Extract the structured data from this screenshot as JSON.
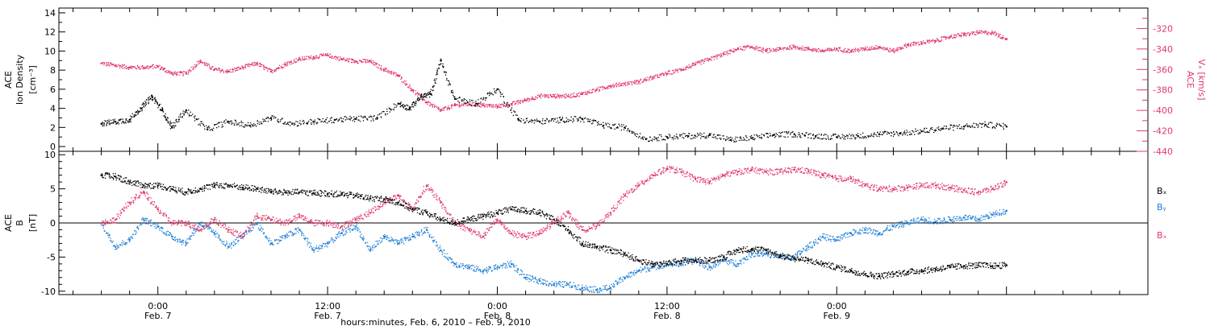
{
  "chart_data": [
    {
      "type": "scatter",
      "panel": "top",
      "y_label_lines": [
        "ACE",
        "Ion Density",
        "[cm⁻³]"
      ],
      "y2_label_lines": [
        "ACE",
        "Vₓ [km/s]"
      ],
      "ylim": [
        -0.5,
        14.5
      ],
      "yticks": [
        0,
        2,
        4,
        6,
        8,
        10,
        12,
        14
      ],
      "y2lim": [
        -440,
        -300
      ],
      "y2ticks": [
        -440,
        -420,
        -400,
        -380,
        -360,
        -340,
        -320
      ],
      "series": [
        {
          "axis": "left",
          "color": "#000000",
          "x": [
            -4.0,
            -3.0,
            -2.0,
            -1.2,
            -0.4,
            0.3,
            1.0,
            2.0,
            3.5,
            5.0,
            6.5,
            8.0,
            9.5,
            11.0,
            12.5,
            14.0,
            15.5,
            17.0,
            17.8,
            18.6,
            19.3,
            20.0,
            21.0,
            22.5,
            24.0,
            25.5,
            27.0,
            28.5,
            30.0,
            31.5,
            33.0,
            34.5,
            36.0,
            37.5,
            39.0,
            40.5,
            42.0,
            43.5,
            45.0,
            46.5,
            48.0,
            49.5,
            51.0,
            52.5,
            54.0,
            55.5,
            57.0,
            58.5,
            60.0
          ],
          "y": [
            2.4,
            2.6,
            2.8,
            4.0,
            5.2,
            3.8,
            2.0,
            3.8,
            1.8,
            2.6,
            2.2,
            3.0,
            2.4,
            2.6,
            2.8,
            2.9,
            3.0,
            4.5,
            4.0,
            5.2,
            5.5,
            9.0,
            5.0,
            4.5,
            6.0,
            2.8,
            2.6,
            2.8,
            2.9,
            2.2,
            2.0,
            0.8,
            1.0,
            1.1,
            1.2,
            0.7,
            0.9,
            1.2,
            1.3,
            1.1,
            1.0,
            1.1,
            1.3,
            1.4,
            1.6,
            1.9,
            2.1,
            2.3,
            2.1
          ]
        },
        {
          "axis": "right",
          "color": "#e0386a",
          "x": [
            -4.0,
            -3.0,
            -2.0,
            -1.0,
            0.0,
            1.0,
            2.0,
            3.0,
            4.0,
            5.0,
            6.0,
            7.0,
            8.0,
            9.0,
            10.0,
            11.0,
            12.0,
            13.0,
            14.0,
            15.0,
            16.0,
            17.0,
            18.0,
            19.0,
            20.0,
            21.0,
            22.0,
            23.0,
            24.0,
            25.0,
            26.0,
            27.0,
            28.0,
            29.0,
            30.0,
            31.0,
            32.0,
            33.0,
            34.0,
            35.0,
            36.0,
            37.0,
            38.0,
            39.0,
            40.0,
            41.0,
            42.0,
            43.0,
            44.0,
            45.0,
            46.0,
            47.0,
            48.0,
            49.0,
            50.0,
            51.0,
            52.0,
            53.0,
            54.0,
            55.0,
            56.0,
            57.0,
            58.0,
            59.0,
            60.0
          ],
          "y": [
            -354,
            -356,
            -358,
            -358,
            -357,
            -364,
            -364,
            -352,
            -360,
            -362,
            -358,
            -354,
            -362,
            -355,
            -350,
            -348,
            -346,
            -350,
            -352,
            -352,
            -360,
            -366,
            -380,
            -392,
            -400,
            -395,
            -394,
            -395,
            -396,
            -394,
            -390,
            -386,
            -386,
            -386,
            -384,
            -380,
            -376,
            -374,
            -372,
            -368,
            -364,
            -360,
            -355,
            -350,
            -345,
            -340,
            -338,
            -342,
            -340,
            -338,
            -340,
            -342,
            -340,
            -342,
            -340,
            -338,
            -342,
            -336,
            -334,
            -332,
            -328,
            -326,
            -324,
            -324,
            -330
          ]
        }
      ]
    },
    {
      "type": "scatter",
      "panel": "bottom",
      "y_label_lines": [
        "ACE",
        "B",
        "[nT]"
      ],
      "ylim": [
        -10.5,
        10.5
      ],
      "yticks": [
        -10,
        -5,
        0,
        5,
        10
      ],
      "zero_line": true,
      "series": [
        {
          "name": "Bₓ",
          "color": "#000000",
          "x": [
            -4.0,
            -3.0,
            -2.0,
            -1.0,
            0.0,
            1.0,
            2.0,
            3.0,
            4.0,
            5.0,
            6.0,
            7.0,
            8.0,
            9.0,
            10.0,
            11.0,
            12.0,
            13.0,
            14.0,
            15.0,
            16.0,
            17.0,
            18.0,
            19.0,
            20.0,
            21.0,
            22.0,
            23.0,
            24.0,
            25.0,
            26.0,
            27.0,
            28.0,
            29.0,
            30.0,
            31.0,
            32.0,
            33.0,
            34.0,
            35.0,
            36.0,
            37.0,
            38.0,
            39.0,
            40.0,
            41.0,
            42.0,
            43.0,
            44.0,
            45.0,
            46.0,
            47.0,
            48.0,
            49.0,
            50.0,
            51.0,
            52.0,
            53.0,
            54.0,
            55.0,
            56.0,
            57.0,
            58.0,
            59.0,
            60.0
          ],
          "y": [
            7.0,
            6.8,
            6.0,
            5.5,
            5.5,
            5.0,
            4.5,
            5.0,
            5.5,
            5.5,
            5.2,
            5.0,
            4.6,
            4.5,
            4.5,
            4.4,
            4.3,
            4.2,
            4.0,
            3.6,
            3.5,
            3.0,
            2.0,
            1.5,
            0.5,
            0.0,
            0.5,
            1.0,
            1.5,
            2.0,
            1.8,
            1.5,
            0.5,
            -1.0,
            -3.0,
            -3.5,
            -4.0,
            -4.5,
            -5.5,
            -6.0,
            -6.0,
            -5.5,
            -5.5,
            -5.5,
            -5.0,
            -4.0,
            -3.8,
            -4.0,
            -4.8,
            -5.2,
            -5.5,
            -6.0,
            -6.5,
            -7.0,
            -7.5,
            -7.8,
            -7.5,
            -7.2,
            -7.0,
            -6.8,
            -6.5,
            -6.3,
            -6.2,
            -6.3,
            -6.2
          ]
        },
        {
          "name": "Bᵧ",
          "color": "#1f7fd4",
          "x": [
            -4.0,
            -3.0,
            -2.0,
            -1.0,
            0.0,
            1.0,
            2.0,
            3.0,
            4.0,
            5.0,
            6.0,
            7.0,
            8.0,
            9.0,
            10.0,
            11.0,
            12.0,
            13.0,
            14.0,
            15.0,
            16.0,
            17.0,
            18.0,
            19.0,
            20.0,
            21.0,
            22.0,
            23.0,
            24.0,
            25.0,
            26.0,
            27.0,
            28.0,
            29.0,
            30.0,
            31.0,
            32.0,
            33.0,
            34.0,
            35.0,
            36.0,
            37.0,
            38.0,
            39.0,
            40.0,
            41.0,
            42.0,
            43.0,
            44.0,
            45.0,
            46.0,
            47.0,
            48.0,
            49.0,
            50.0,
            51.0,
            52.0,
            53.0,
            54.0,
            55.0,
            56.0,
            57.0,
            58.0,
            59.0,
            60.0
          ],
          "y": [
            0.0,
            -3.5,
            -2.5,
            0.5,
            -0.5,
            -2.0,
            -3.0,
            0.0,
            -1.5,
            -3.5,
            -2.0,
            0.0,
            -3.0,
            -2.0,
            -1.0,
            -4.0,
            -3.0,
            -1.5,
            -0.5,
            -4.0,
            -2.0,
            -3.0,
            -2.0,
            -1.0,
            -4.0,
            -6.0,
            -6.5,
            -7.0,
            -6.5,
            -6.0,
            -8.0,
            -8.5,
            -9.0,
            -9.0,
            -9.5,
            -9.8,
            -9.5,
            -8.0,
            -7.0,
            -6.5,
            -6.0,
            -6.0,
            -5.5,
            -6.5,
            -5.5,
            -6.0,
            -4.5,
            -4.5,
            -5.0,
            -5.0,
            -3.5,
            -2.0,
            -2.5,
            -1.5,
            -1.0,
            -1.5,
            -0.5,
            0.0,
            0.5,
            0.2,
            0.5,
            0.8,
            0.5,
            1.2,
            1.8
          ]
        },
        {
          "name": "Bₓ ",
          "color": "#e0386a",
          "x": [
            -4.0,
            -3.0,
            -2.0,
            -1.0,
            0.0,
            1.0,
            2.0,
            3.0,
            4.0,
            5.0,
            6.0,
            7.0,
            8.0,
            9.0,
            10.0,
            11.0,
            12.0,
            13.0,
            14.0,
            15.0,
            16.0,
            17.0,
            18.0,
            19.0,
            20.0,
            21.0,
            22.0,
            23.0,
            24.0,
            25.0,
            26.0,
            27.0,
            28.0,
            29.0,
            30.0,
            31.0,
            32.0,
            33.0,
            34.0,
            35.0,
            36.0,
            37.0,
            38.0,
            39.0,
            40.0,
            41.0,
            42.0,
            43.0,
            44.0,
            45.0,
            46.0,
            47.0,
            48.0,
            49.0,
            50.0,
            51.0,
            52.0,
            53.0,
            54.0,
            55.0,
            56.0,
            57.0,
            58.0,
            59.0,
            60.0
          ],
          "y": [
            0.0,
            0.5,
            3.0,
            4.5,
            2.0,
            0.0,
            0.0,
            -1.0,
            0.5,
            -1.0,
            -2.0,
            1.0,
            0.5,
            0.0,
            1.0,
            0.0,
            0.0,
            -0.5,
            0.5,
            1.5,
            3.0,
            4.0,
            2.0,
            5.5,
            3.0,
            0.0,
            -1.0,
            -2.0,
            0.5,
            -1.5,
            -2.0,
            -1.5,
            0.0,
            1.5,
            -1.0,
            -0.5,
            1.5,
            4.0,
            5.5,
            7.0,
            8.0,
            7.5,
            6.5,
            6.0,
            7.0,
            7.5,
            7.8,
            7.5,
            7.5,
            7.8,
            7.6,
            7.0,
            6.5,
            6.5,
            5.5,
            5.0,
            5.0,
            5.2,
            5.5,
            5.5,
            5.2,
            4.8,
            4.5,
            5.0,
            6.0
          ]
        }
      ],
      "legend_labels": [
        "Bₓ",
        "Bᵧ",
        "Bₓ"
      ]
    }
  ],
  "x_axis": {
    "label": "hours:minutes, Feb. 6, 2010 – Feb. 9, 2010",
    "range_hours": [
      -7.0,
      70.0
    ],
    "major_ticks": [
      {
        "hour": 0,
        "time": "0:00",
        "date": "Feb. 7"
      },
      {
        "hour": 12,
        "time": "12:00",
        "date": "Feb. 7"
      },
      {
        "hour": 24,
        "time": "0:00",
        "date": "Feb. 8"
      },
      {
        "hour": 36,
        "time": "12:00",
        "date": "Feb. 8"
      },
      {
        "hour": 48,
        "time": "0:00",
        "date": "Feb. 9"
      }
    ]
  },
  "colors": {
    "density": "#000000",
    "vx": "#e0386a",
    "bx": "#000000",
    "by": "#1f7fd4",
    "bz": "#e0386a"
  }
}
